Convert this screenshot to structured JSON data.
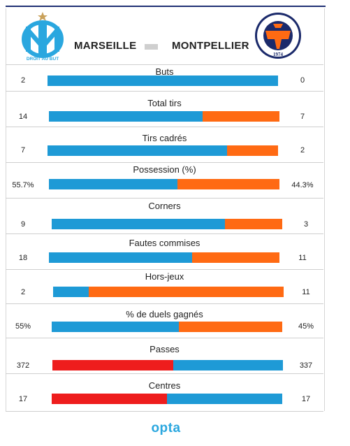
{
  "teams": {
    "home": "MARSEILLE",
    "away": "MONTPELLIER"
  },
  "logos": {
    "home_caption": "DROIT AU BUT",
    "away_name": "MONTPELLIER Hérault Sport Club",
    "away_year": "1974"
  },
  "stats": [
    {
      "label": "Buts",
      "home": "2",
      "away": "0",
      "home_share": 1.0,
      "colors": [
        "#1e9ad6",
        "#ff6a13"
      ]
    },
    {
      "label": "Total tirs",
      "home": "14",
      "away": "7",
      "home_share": 0.667,
      "colors": [
        "#1e9ad6",
        "#ff6a13"
      ]
    },
    {
      "label": "Tirs cadrés",
      "home": "7",
      "away": "2",
      "home_share": 0.778,
      "colors": [
        "#1e9ad6",
        "#ff6a13"
      ]
    },
    {
      "label": "Possession (%)",
      "home": "55.7%",
      "away": "44.3%",
      "home_share": 0.557,
      "colors": [
        "#1e9ad6",
        "#ff6a13"
      ]
    },
    {
      "label": "Corners",
      "home": "9",
      "away": "3",
      "home_share": 0.75,
      "colors": [
        "#1e9ad6",
        "#ff6a13"
      ]
    },
    {
      "label": "Fautes commises",
      "home": "18",
      "away": "11",
      "home_share": 0.621,
      "colors": [
        "#1e9ad6",
        "#ff6a13"
      ]
    },
    {
      "label": "Hors-jeux",
      "home": "2",
      "away": "11",
      "home_share": 0.154,
      "colors": [
        "#1e9ad6",
        "#ff6a13"
      ]
    },
    {
      "label": "% de duels gagnés",
      "home": "55%",
      "away": "45%",
      "home_share": 0.55,
      "colors": [
        "#1e9ad6",
        "#ff6a13"
      ]
    },
    {
      "label": "Passes",
      "home": "372",
      "away": "337",
      "home_share": 0.525,
      "colors": [
        "#ee1d1d",
        "#1e9ad6"
      ]
    },
    {
      "label": "Centres",
      "home": "17",
      "away": "17",
      "home_share": 0.5,
      "colors": [
        "#ee1d1d",
        "#1e9ad6"
      ]
    }
  ],
  "footer": {
    "brand": "opta"
  }
}
